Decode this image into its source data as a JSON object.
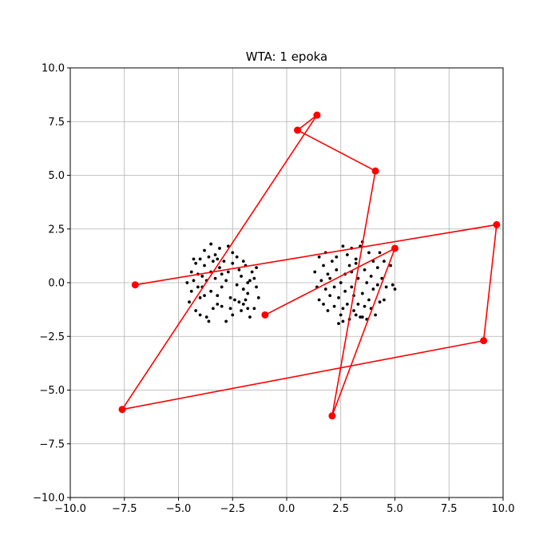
{
  "chart_data": {
    "type": "scatter",
    "title": "WTA: 1 epoka",
    "xlabel": "",
    "ylabel": "",
    "xlim": [
      -10,
      10
    ],
    "ylim": [
      -10,
      10
    ],
    "xticks": [
      -10,
      -7.5,
      -5,
      -2.5,
      0,
      2.5,
      5,
      7.5,
      10
    ],
    "xtick_labels": [
      "−10.0",
      "−7.5",
      "−5.0",
      "−2.5",
      "0.0",
      "2.5",
      "5.0",
      "7.5",
      "10.0"
    ],
    "yticks": [
      -10,
      -7.5,
      -5,
      -2.5,
      0,
      2.5,
      5,
      7.5,
      10
    ],
    "ytick_labels": [
      "−10.0",
      "−7.5",
      "−5.0",
      "−2.5",
      "0.0",
      "2.5",
      "5.0",
      "7.5",
      "10.0"
    ],
    "grid": true,
    "colors": {
      "points": "#000000",
      "neurons": "#ff0000",
      "grid": "#b0b0b0"
    },
    "data_points": [
      [
        -4.6,
        0.0
      ],
      [
        -4.5,
        -0.9
      ],
      [
        -4.4,
        0.5
      ],
      [
        -4.4,
        -0.4
      ],
      [
        -4.3,
        1.1
      ],
      [
        -4.3,
        0.1
      ],
      [
        -4.2,
        -1.3
      ],
      [
        -4.2,
        0.9
      ],
      [
        -4.1,
        -0.2
      ],
      [
        -4.1,
        0.4
      ],
      [
        -4.0,
        1.1
      ],
      [
        -4.0,
        -0.7
      ],
      [
        -4.0,
        -1.5
      ],
      [
        -3.9,
        0.3
      ],
      [
        -3.9,
        -0.2
      ],
      [
        -3.8,
        1.5
      ],
      [
        -3.8,
        0.8
      ],
      [
        -3.8,
        -0.6
      ],
      [
        -3.7,
        -1.6
      ],
      [
        -3.7,
        0.1
      ],
      [
        -3.6,
        1.2
      ],
      [
        -3.6,
        -1.8
      ],
      [
        -3.5,
        1.8
      ],
      [
        -3.5,
        0.5
      ],
      [
        -3.5,
        -0.4
      ],
      [
        -3.4,
        1.0
      ],
      [
        -3.4,
        -1.2
      ],
      [
        -3.3,
        0.2
      ],
      [
        -3.3,
        1.3
      ],
      [
        -3.2,
        -0.6
      ],
      [
        -3.2,
        -1.0
      ],
      [
        -3.1,
        0.7
      ],
      [
        -3.1,
        1.6
      ],
      [
        -3.0,
        -0.2
      ],
      [
        -3.0,
        0.4
      ],
      [
        -3.0,
        -1.1
      ],
      [
        -2.9,
        1.0
      ],
      [
        -2.8,
        -1.8
      ],
      [
        -2.8,
        0.1
      ],
      [
        -2.7,
        0.5
      ],
      [
        -2.7,
        1.7
      ],
      [
        -2.6,
        -0.7
      ],
      [
        -2.6,
        -1.2
      ],
      [
        -2.5,
        -1.5
      ],
      [
        -2.5,
        1.4
      ],
      [
        -2.5,
        0.9
      ],
      [
        -2.4,
        -0.8
      ],
      [
        -2.3,
        -0.1
      ],
      [
        -2.3,
        1.2
      ],
      [
        -2.2,
        0.6
      ],
      [
        -2.2,
        -0.9
      ],
      [
        -2.1,
        -1.3
      ],
      [
        -2.1,
        0.3
      ],
      [
        -2.0,
        -1.0
      ],
      [
        -2.0,
        1.0
      ],
      [
        -2.0,
        -0.3
      ],
      [
        -1.9,
        0.8
      ],
      [
        -1.9,
        -0.8
      ],
      [
        -1.8,
        0.0
      ],
      [
        -1.8,
        -0.5
      ],
      [
        -1.7,
        -1.6
      ],
      [
        -1.7,
        0.1
      ],
      [
        -1.6,
        0.5
      ],
      [
        -1.5,
        -1.2
      ],
      [
        -1.5,
        0.2
      ],
      [
        -1.4,
        0.7
      ],
      [
        -1.4,
        -0.2
      ],
      [
        -1.3,
        -0.7
      ],
      [
        -1.8,
        -1.2
      ],
      [
        -3.2,
        1.1
      ],
      [
        1.3,
        0.5
      ],
      [
        1.4,
        -0.2
      ],
      [
        1.5,
        1.2
      ],
      [
        1.5,
        -0.8
      ],
      [
        1.6,
        0.1
      ],
      [
        1.7,
        0.8
      ],
      [
        1.7,
        -1.0
      ],
      [
        1.8,
        -0.3
      ],
      [
        1.8,
        1.4
      ],
      [
        1.9,
        0.4
      ],
      [
        1.9,
        -1.3
      ],
      [
        2.0,
        0.2
      ],
      [
        2.0,
        -0.6
      ],
      [
        2.1,
        1.0
      ],
      [
        2.2,
        -0.2
      ],
      [
        2.2,
        -1.1
      ],
      [
        2.3,
        0.6
      ],
      [
        2.3,
        1.2
      ],
      [
        2.4,
        -0.7
      ],
      [
        2.5,
        -1.5
      ],
      [
        2.5,
        0.0
      ],
      [
        2.6,
        1.7
      ],
      [
        2.6,
        -1.8
      ],
      [
        2.6,
        -1.2
      ],
      [
        2.7,
        0.4
      ],
      [
        2.7,
        -0.4
      ],
      [
        2.8,
        1.3
      ],
      [
        2.8,
        -1.0
      ],
      [
        2.9,
        0.8
      ],
      [
        2.9,
        -1.7
      ],
      [
        3.0,
        -0.2
      ],
      [
        3.0,
        0.5
      ],
      [
        3.0,
        1.6
      ],
      [
        3.1,
        -1.3
      ],
      [
        3.1,
        -0.6
      ],
      [
        3.2,
        1.1
      ],
      [
        3.2,
        -1.5
      ],
      [
        3.3,
        0.2
      ],
      [
        3.3,
        -1.0
      ],
      [
        3.4,
        1.7
      ],
      [
        3.4,
        -1.6
      ],
      [
        3.5,
        -0.5
      ],
      [
        3.5,
        1.9
      ],
      [
        3.6,
        0.6
      ],
      [
        3.6,
        -1.1
      ],
      [
        3.7,
        -1.7
      ],
      [
        3.7,
        0.0
      ],
      [
        3.8,
        1.4
      ],
      [
        3.8,
        -0.8
      ],
      [
        3.9,
        0.3
      ],
      [
        3.9,
        -1.2
      ],
      [
        4.0,
        1.0
      ],
      [
        4.0,
        -0.3
      ],
      [
        4.1,
        -1.5
      ],
      [
        4.2,
        0.7
      ],
      [
        4.2,
        -0.1
      ],
      [
        4.3,
        1.4
      ],
      [
        4.3,
        -0.9
      ],
      [
        4.4,
        0.2
      ],
      [
        4.5,
        -0.8
      ],
      [
        4.5,
        1.0
      ],
      [
        4.6,
        -0.2
      ],
      [
        4.8,
        0.8
      ],
      [
        4.9,
        -0.1
      ],
      [
        5.0,
        -0.3
      ],
      [
        3.2,
        0.9
      ],
      [
        2.4,
        -1.9
      ],
      [
        3.5,
        -1.6
      ]
    ],
    "neuron_path": [
      [
        -7.0,
        -0.1
      ],
      [
        9.7,
        2.7
      ],
      [
        9.1,
        -2.7
      ],
      [
        -7.6,
        -5.9
      ],
      [
        1.4,
        7.8
      ],
      [
        0.5,
        7.1
      ],
      [
        4.1,
        5.2
      ],
      [
        2.1,
        -6.2
      ],
      [
        5.0,
        1.6
      ],
      [
        -1.0,
        -1.5
      ]
    ]
  }
}
